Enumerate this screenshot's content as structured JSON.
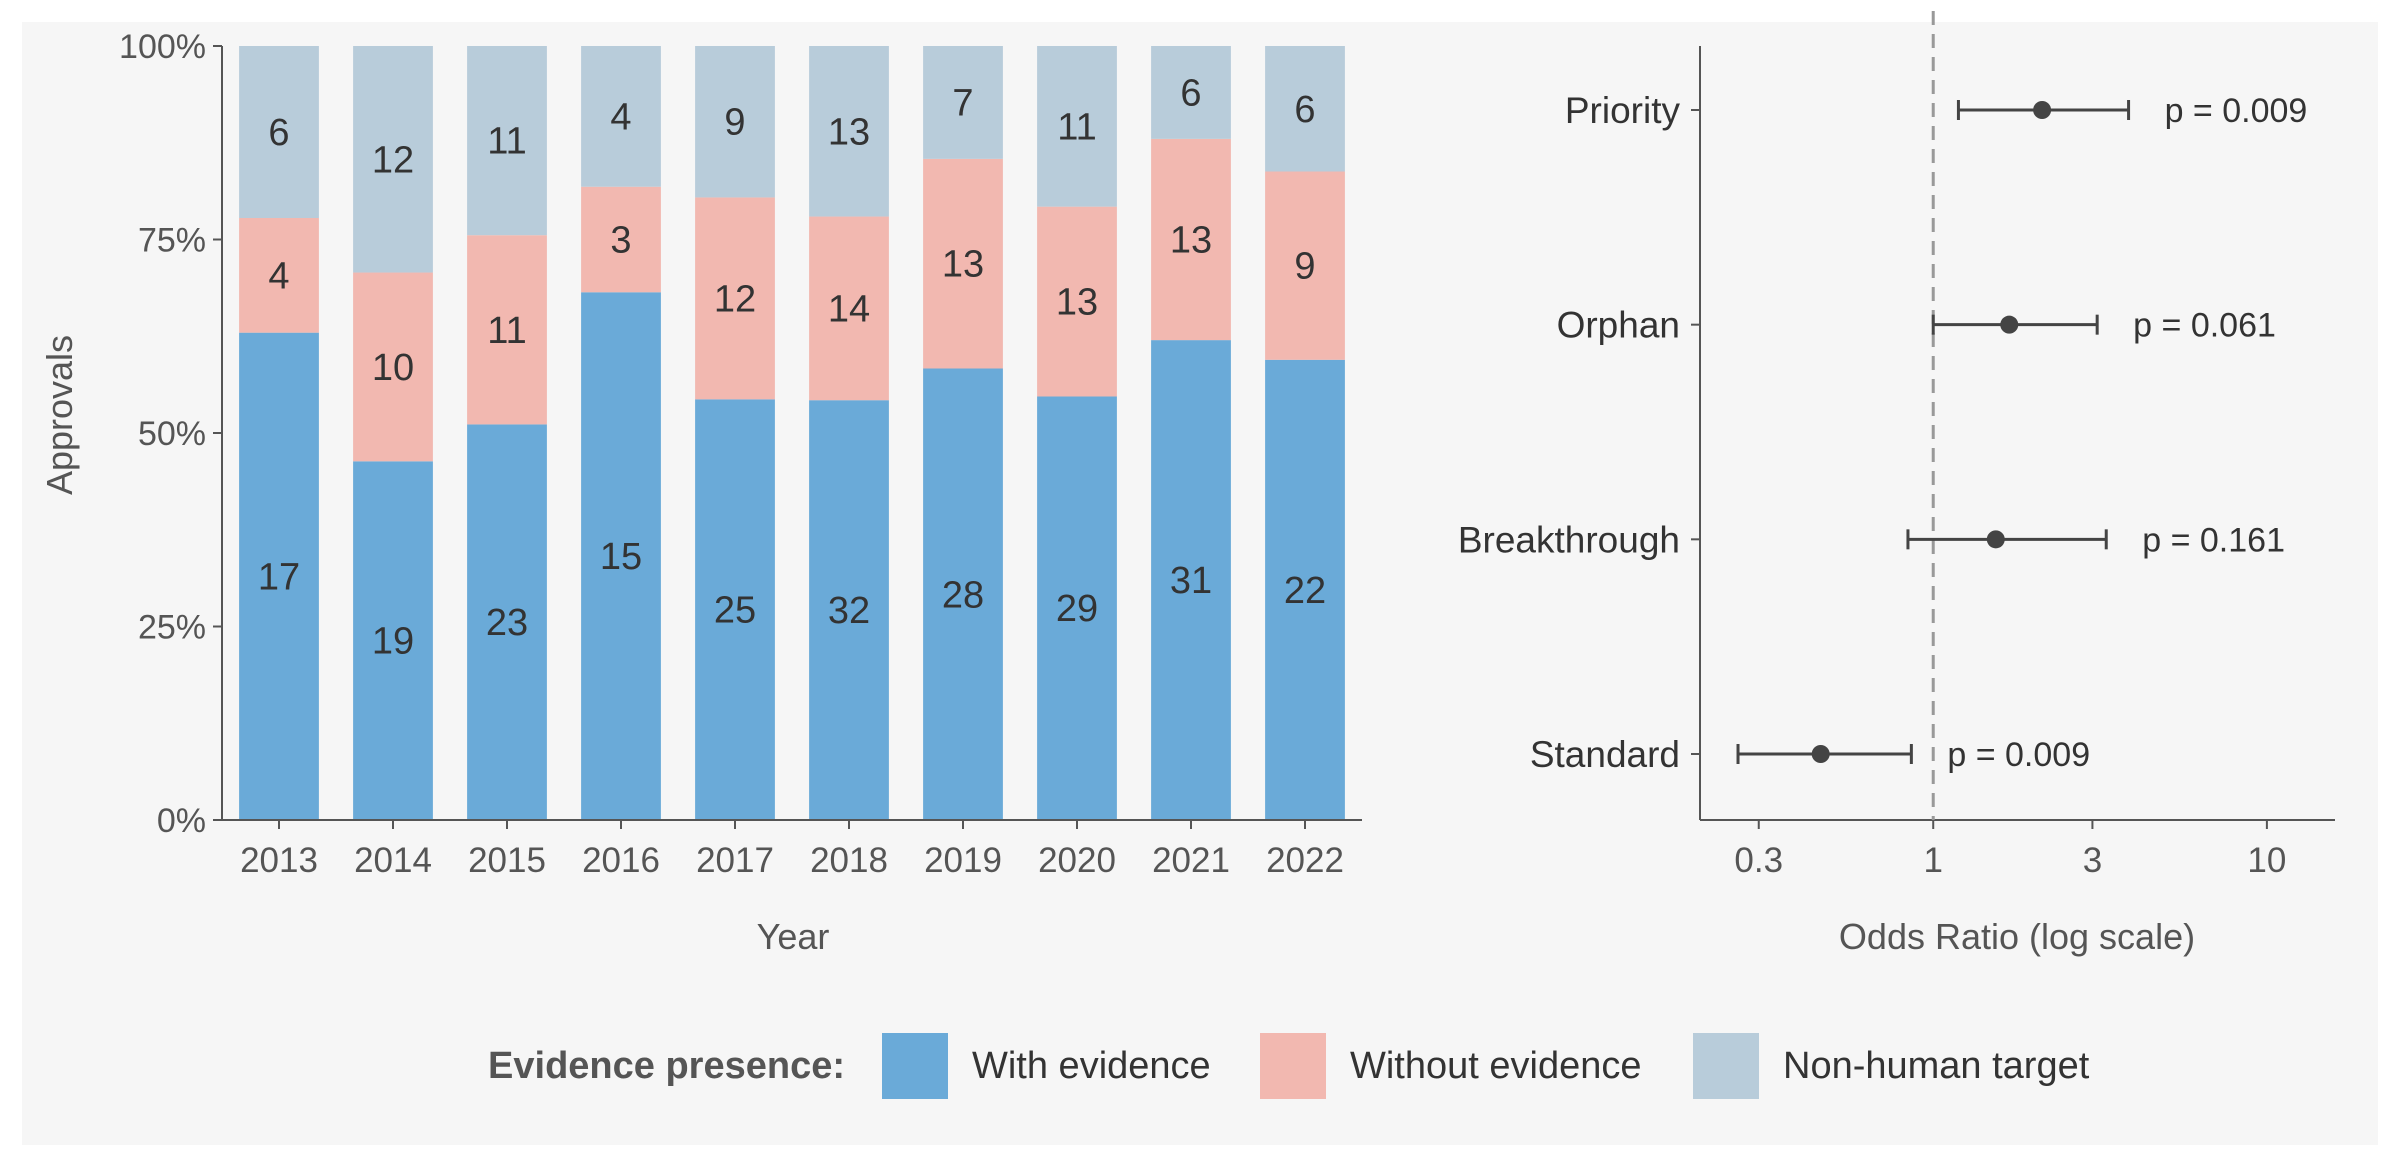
{
  "colors": {
    "panel_bg": "#f6f6f6",
    "with_evidence": "#6aaad8",
    "without_evidence": "#f2b8b0",
    "non_human": "#b8ccda",
    "text": "#333333",
    "axis": "#555555",
    "point": "#444444",
    "ref_line": "#999999"
  },
  "chart_data": [
    {
      "type": "bar",
      "stacked": "percent",
      "ylabel": "Approvals",
      "xlabel": "Year",
      "ylim": [
        0,
        100
      ],
      "yticks": [
        0,
        25,
        50,
        75,
        100
      ],
      "ytick_labels": [
        "0%",
        "25%",
        "50%",
        "75%",
        "100%"
      ],
      "categories": [
        "2013",
        "2014",
        "2015",
        "2016",
        "2017",
        "2018",
        "2019",
        "2020",
        "2021",
        "2022"
      ],
      "series": [
        {
          "name": "With evidence",
          "color_key": "with_evidence",
          "values": [
            17,
            19,
            23,
            15,
            25,
            32,
            28,
            29,
            31,
            22
          ]
        },
        {
          "name": "Without evidence",
          "color_key": "without_evidence",
          "values": [
            4,
            10,
            11,
            3,
            12,
            14,
            13,
            13,
            13,
            9
          ]
        },
        {
          "name": "Non-human target",
          "color_key": "non_human",
          "values": [
            6,
            12,
            11,
            4,
            9,
            13,
            7,
            11,
            6,
            6
          ]
        }
      ],
      "legend": {
        "title": "Evidence presence:",
        "position": "bottom",
        "entries": [
          "With evidence",
          "Without evidence",
          "Non-human target"
        ]
      }
    },
    {
      "type": "scatter",
      "subtype": "forest",
      "xlabel": "Odds Ratio (log scale)",
      "xscale": "log",
      "xlim": [
        0.2,
        16
      ],
      "xticks": [
        0.3,
        1,
        3,
        10
      ],
      "xtick_labels": [
        "0.3",
        "1",
        "3",
        "10"
      ],
      "reference_line": 1,
      "categories": [
        "Priority",
        "Orphan",
        "Breakthrough",
        "Standard"
      ],
      "estimates": [
        2.12,
        1.69,
        1.54,
        0.46
      ],
      "ci_low": [
        1.19,
        1.0,
        0.84,
        0.26
      ],
      "ci_high": [
        3.85,
        3.1,
        3.3,
        0.86
      ],
      "p_labels": [
        "p = 0.009",
        "p = 0.061",
        "p = 0.161",
        "p = 0.009"
      ]
    }
  ]
}
